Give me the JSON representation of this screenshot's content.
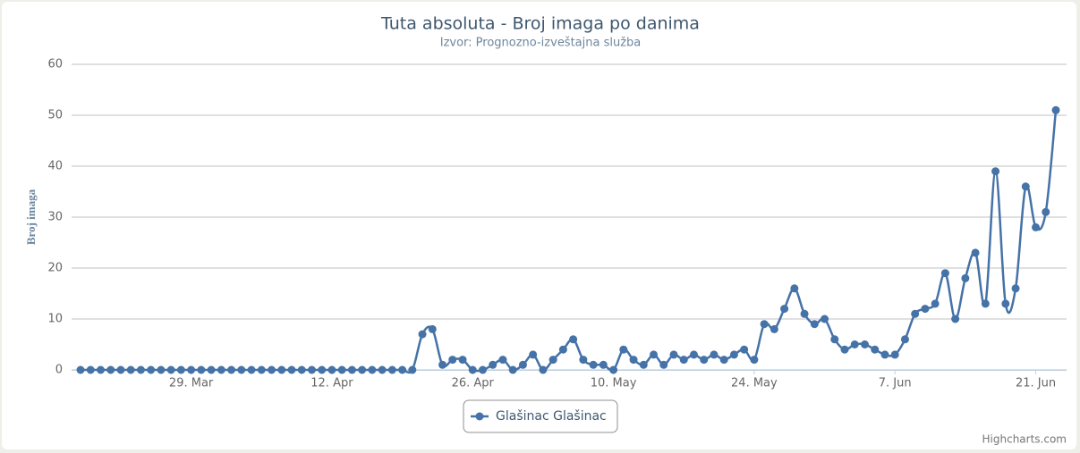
{
  "chart_data": {
    "type": "line",
    "title": "Tuta absoluta - Broj imaga po danima",
    "subtitle": "Izvor: Prognozno-izveštajna služba",
    "y_label": "Broj imaga",
    "credits": "Highcharts.com",
    "categories": [
      null,
      null,
      null,
      null,
      null,
      null,
      null,
      null,
      null,
      null,
      null,
      "29. Mar",
      null,
      null,
      null,
      null,
      null,
      null,
      null,
      null,
      null,
      null,
      null,
      null,
      null,
      "12. Apr",
      null,
      null,
      null,
      null,
      null,
      null,
      null,
      null,
      null,
      null,
      null,
      null,
      null,
      "26. Apr",
      null,
      null,
      null,
      null,
      null,
      null,
      null,
      null,
      null,
      null,
      null,
      null,
      null,
      "10. May",
      null,
      null,
      null,
      null,
      null,
      null,
      null,
      null,
      null,
      null,
      null,
      null,
      null,
      "24. May",
      null,
      null,
      null,
      null,
      null,
      null,
      null,
      null,
      null,
      null,
      null,
      null,
      null,
      "7. Jun",
      null,
      null,
      null,
      null,
      null,
      null,
      null,
      null,
      null,
      null,
      null,
      null,
      null,
      "21. Jun",
      null,
      null
    ],
    "series": [
      {
        "name": "Glašinac Glašinac",
        "color": "#4572a7",
        "values": [
          0,
          0,
          0,
          0,
          0,
          0,
          0,
          0,
          0,
          0,
          0,
          0,
          0,
          0,
          0,
          0,
          0,
          0,
          0,
          0,
          0,
          0,
          0,
          0,
          0,
          0,
          0,
          0,
          0,
          0,
          0,
          0,
          0,
          0,
          7,
          8,
          1,
          2,
          2,
          0,
          0,
          1,
          2,
          0,
          1,
          3,
          0,
          2,
          4,
          6,
          2,
          1,
          1,
          0,
          4,
          2,
          1,
          3,
          1,
          3,
          2,
          3,
          2,
          3,
          2,
          3,
          4,
          2,
          9,
          8,
          12,
          16,
          11,
          9,
          10,
          6,
          4,
          5,
          5,
          4,
          3,
          3,
          6,
          11,
          12,
          13,
          19,
          10,
          18,
          23,
          13,
          39,
          13,
          16,
          36,
          28,
          31,
          51
        ]
      }
    ],
    "ylim": [
      0,
      60
    ],
    "yticks": [
      0,
      10,
      20,
      30,
      40,
      50,
      60
    ],
    "grid": true
  }
}
